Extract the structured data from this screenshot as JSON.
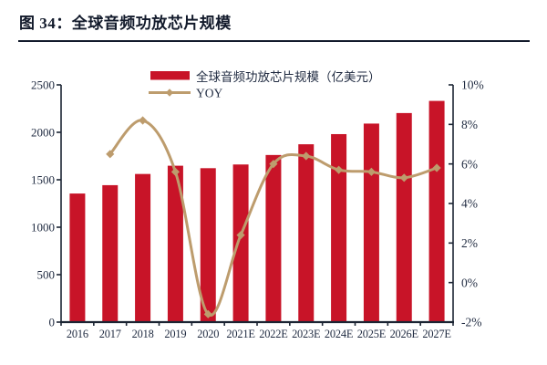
{
  "title": "图 34：全球音频功放芯片规模",
  "colors": {
    "bar": "#c81428",
    "line": "#bd9c6d",
    "text": "#1f2a40",
    "axis": "#1b2433",
    "title_text": "#121a2b"
  },
  "chart_data": {
    "type": "bar",
    "title": "图 34：全球音频功放芯片规模",
    "categories": [
      "2016",
      "2017",
      "2018",
      "2019",
      "2020",
      "2021E",
      "2022E",
      "2023E",
      "2024E",
      "2025E",
      "2026E",
      "2027E"
    ],
    "series": [
      {
        "name": "全球音频功放芯片规模（亿美元）",
        "type": "bar",
        "axis": "left",
        "color": "#c81428",
        "values": [
          1355,
          1443,
          1561,
          1648,
          1622,
          1661,
          1761,
          1874,
          1981,
          2092,
          2203,
          2331
        ]
      },
      {
        "name": "YOY",
        "type": "line",
        "axis": "right",
        "color": "#bd9c6d",
        "values": [
          null,
          6.5,
          8.2,
          5.6,
          -1.6,
          2.4,
          6.0,
          6.4,
          5.7,
          5.6,
          5.3,
          5.8
        ]
      }
    ],
    "left_axis": {
      "min": 0,
      "max": 2500,
      "step": 500,
      "tick_labels": [
        "0",
        "500",
        "1000",
        "1500",
        "2000",
        "2500"
      ]
    },
    "right_axis": {
      "min": -2,
      "max": 10,
      "step": 2,
      "tick_labels": [
        "-2%",
        "0%",
        "2%",
        "4%",
        "6%",
        "8%",
        "10%"
      ],
      "unit": "%"
    },
    "grid": false,
    "legend_position": "top-center"
  }
}
